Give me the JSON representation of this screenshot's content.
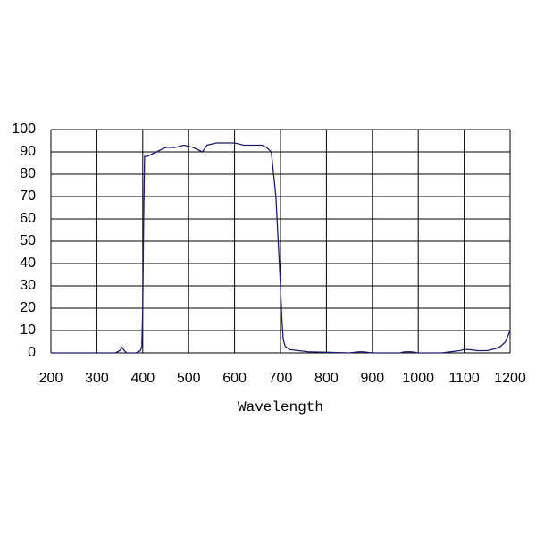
{
  "chart_data": {
    "type": "line",
    "x_label": "Wavelength",
    "x": [
      200,
      340,
      350,
      355,
      360,
      365,
      385,
      395,
      398,
      400,
      402,
      404,
      410,
      420,
      430,
      440,
      450,
      470,
      490,
      510,
      520,
      530,
      540,
      560,
      580,
      600,
      620,
      640,
      660,
      670,
      680,
      690,
      695,
      700,
      703,
      706,
      710,
      720,
      740,
      760,
      800,
      850,
      870,
      880,
      900,
      960,
      970,
      985,
      1000,
      1050,
      1070,
      1090,
      1100,
      1110,
      1130,
      1150,
      1170,
      1180,
      1190,
      1200
    ],
    "series": [
      {
        "color": "#1c1c6b",
        "values": [
          0,
          0,
          1,
          2.5,
          1,
          0,
          0,
          1,
          3,
          20,
          60,
          88,
          88,
          89,
          90,
          91,
          92,
          92,
          93,
          92,
          91,
          90,
          93,
          94,
          94,
          94,
          93,
          93,
          93,
          92,
          90,
          70,
          50,
          30,
          15,
          6,
          3,
          1.5,
          1,
          0.5,
          0.3,
          0,
          0.5,
          0.5,
          0,
          0,
          0.5,
          0.5,
          0,
          0,
          0.5,
          1,
          1.5,
          1.5,
          1,
          1,
          2,
          3,
          5,
          10
        ]
      }
    ],
    "xlim": [
      200,
      1200
    ],
    "ylim": [
      0,
      100
    ],
    "xticks": [
      200,
      300,
      400,
      500,
      600,
      700,
      800,
      900,
      1000,
      1100,
      1200
    ],
    "yticks": [
      0,
      10,
      20,
      30,
      40,
      50,
      60,
      70,
      80,
      90,
      100
    ],
    "grid": true
  }
}
